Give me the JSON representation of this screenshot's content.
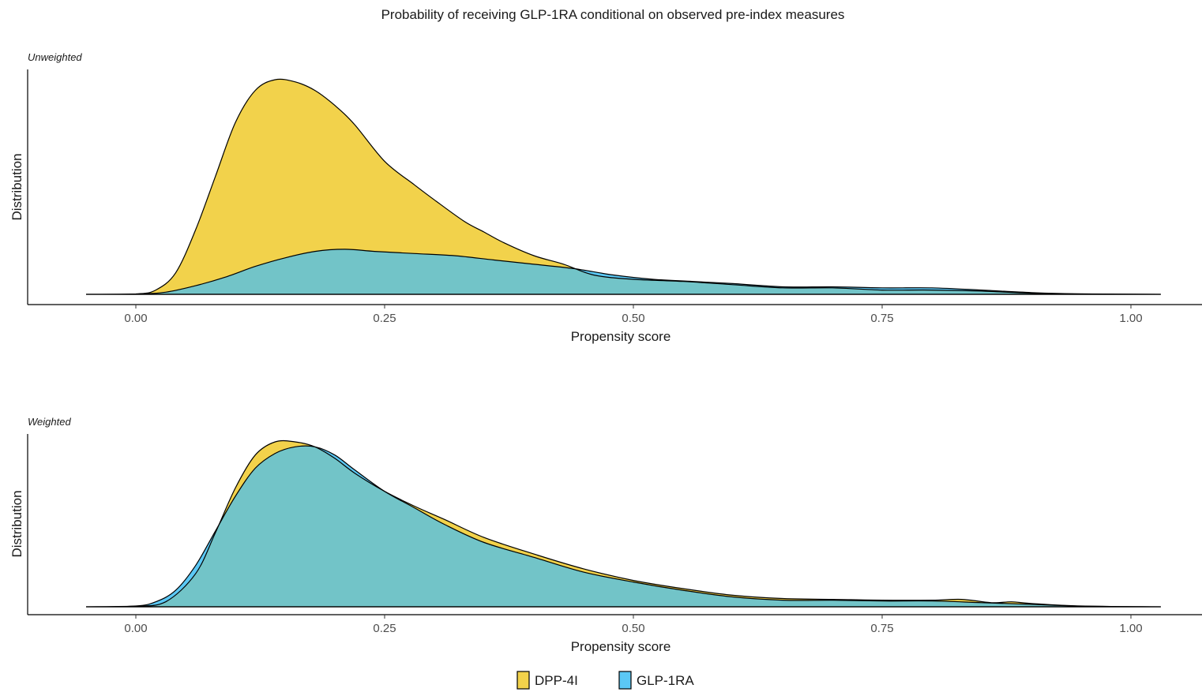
{
  "title": "Probability of receiving GLP-1RA conditional on observed pre-index measures",
  "legend": {
    "position": "bottom",
    "items": [
      {
        "label": "DPP-4I",
        "color": "#F2D24B"
      },
      {
        "label": "GLP-1RA",
        "color": "#5BC8F5"
      }
    ]
  },
  "overlap_color": "#72C4C8",
  "chart_data": [
    {
      "type": "area",
      "panel_label": "Unweighted",
      "xlabel": "Propensity score",
      "ylabel": "Distribution",
      "xlim": [
        -0.05,
        1.03
      ],
      "ylim": [
        0,
        1.0
      ],
      "grid": false,
      "x_ticks": [
        "0.00",
        "0.25",
        "0.50",
        "0.75",
        "1.00"
      ],
      "series": [
        {
          "name": "DPP-4I",
          "color": "#F2D24B",
          "points": [
            [
              -0.05,
              0
            ],
            [
              0,
              0.002
            ],
            [
              0.02,
              0.02
            ],
            [
              0.04,
              0.1
            ],
            [
              0.06,
              0.3
            ],
            [
              0.08,
              0.55
            ],
            [
              0.1,
              0.8
            ],
            [
              0.12,
              0.95
            ],
            [
              0.14,
              1.0
            ],
            [
              0.16,
              0.99
            ],
            [
              0.18,
              0.95
            ],
            [
              0.2,
              0.88
            ],
            [
              0.22,
              0.79
            ],
            [
              0.25,
              0.62
            ],
            [
              0.28,
              0.51
            ],
            [
              0.3,
              0.44
            ],
            [
              0.33,
              0.34
            ],
            [
              0.35,
              0.29
            ],
            [
              0.37,
              0.24
            ],
            [
              0.4,
              0.18
            ],
            [
              0.43,
              0.14
            ],
            [
              0.46,
              0.09
            ],
            [
              0.5,
              0.07
            ],
            [
              0.55,
              0.06
            ],
            [
              0.6,
              0.045
            ],
            [
              0.65,
              0.03
            ],
            [
              0.7,
              0.03
            ],
            [
              0.75,
              0.02
            ],
            [
              0.8,
              0.02
            ],
            [
              0.85,
              0.015
            ],
            [
              0.9,
              0.005
            ],
            [
              0.95,
              0.002
            ],
            [
              1.03,
              0
            ]
          ]
        },
        {
          "name": "GLP-1RA",
          "color": "#5BC8F5",
          "points": [
            [
              -0.05,
              0
            ],
            [
              0,
              0.001
            ],
            [
              0.03,
              0.01
            ],
            [
              0.06,
              0.04
            ],
            [
              0.09,
              0.08
            ],
            [
              0.12,
              0.13
            ],
            [
              0.15,
              0.17
            ],
            [
              0.18,
              0.2
            ],
            [
              0.21,
              0.21
            ],
            [
              0.24,
              0.2
            ],
            [
              0.28,
              0.19
            ],
            [
              0.32,
              0.18
            ],
            [
              0.36,
              0.16
            ],
            [
              0.4,
              0.14
            ],
            [
              0.44,
              0.12
            ],
            [
              0.48,
              0.09
            ],
            [
              0.52,
              0.07
            ],
            [
              0.56,
              0.06
            ],
            [
              0.6,
              0.05
            ],
            [
              0.65,
              0.035
            ],
            [
              0.7,
              0.035
            ],
            [
              0.75,
              0.03
            ],
            [
              0.8,
              0.03
            ],
            [
              0.85,
              0.02
            ],
            [
              0.9,
              0.008
            ],
            [
              0.95,
              0.002
            ],
            [
              1.03,
              0
            ]
          ]
        }
      ]
    },
    {
      "type": "area",
      "panel_label": "Weighted",
      "xlabel": "Propensity score",
      "ylabel": "Distribution",
      "xlim": [
        -0.05,
        1.03
      ],
      "ylim": [
        0,
        1.0
      ],
      "grid": false,
      "x_ticks": [
        "0.00",
        "0.25",
        "0.50",
        "0.75",
        "1.00"
      ],
      "series": [
        {
          "name": "DPP-4I",
          "color": "#F2D24B",
          "points": [
            [
              -0.05,
              0
            ],
            [
              0,
              0.003
            ],
            [
              0.03,
              0.03
            ],
            [
              0.06,
              0.2
            ],
            [
              0.08,
              0.45
            ],
            [
              0.1,
              0.72
            ],
            [
              0.12,
              0.92
            ],
            [
              0.14,
              1.0
            ],
            [
              0.16,
              1.0
            ],
            [
              0.18,
              0.97
            ],
            [
              0.2,
              0.9
            ],
            [
              0.22,
              0.81
            ],
            [
              0.25,
              0.7
            ],
            [
              0.28,
              0.61
            ],
            [
              0.31,
              0.53
            ],
            [
              0.35,
              0.42
            ],
            [
              0.4,
              0.32
            ],
            [
              0.45,
              0.23
            ],
            [
              0.5,
              0.16
            ],
            [
              0.55,
              0.11
            ],
            [
              0.6,
              0.07
            ],
            [
              0.65,
              0.05
            ],
            [
              0.7,
              0.045
            ],
            [
              0.75,
              0.04
            ],
            [
              0.8,
              0.04
            ],
            [
              0.83,
              0.045
            ],
            [
              0.86,
              0.025
            ],
            [
              0.88,
              0.03
            ],
            [
              0.9,
              0.02
            ],
            [
              0.95,
              0.005
            ],
            [
              1.03,
              0
            ]
          ]
        },
        {
          "name": "GLP-1RA",
          "color": "#5BC8F5",
          "points": [
            [
              -0.05,
              0
            ],
            [
              0,
              0.005
            ],
            [
              0.02,
              0.03
            ],
            [
              0.04,
              0.1
            ],
            [
              0.06,
              0.25
            ],
            [
              0.08,
              0.46
            ],
            [
              0.1,
              0.67
            ],
            [
              0.12,
              0.84
            ],
            [
              0.14,
              0.93
            ],
            [
              0.16,
              0.97
            ],
            [
              0.18,
              0.97
            ],
            [
              0.2,
              0.92
            ],
            [
              0.22,
              0.83
            ],
            [
              0.25,
              0.7
            ],
            [
              0.28,
              0.6
            ],
            [
              0.31,
              0.5
            ],
            [
              0.35,
              0.39
            ],
            [
              0.4,
              0.3
            ],
            [
              0.45,
              0.21
            ],
            [
              0.5,
              0.15
            ],
            [
              0.55,
              0.1
            ],
            [
              0.6,
              0.06
            ],
            [
              0.65,
              0.04
            ],
            [
              0.7,
              0.04
            ],
            [
              0.75,
              0.035
            ],
            [
              0.8,
              0.035
            ],
            [
              0.85,
              0.025
            ],
            [
              0.9,
              0.015
            ],
            [
              0.95,
              0.004
            ],
            [
              1.03,
              0
            ]
          ]
        }
      ]
    }
  ]
}
